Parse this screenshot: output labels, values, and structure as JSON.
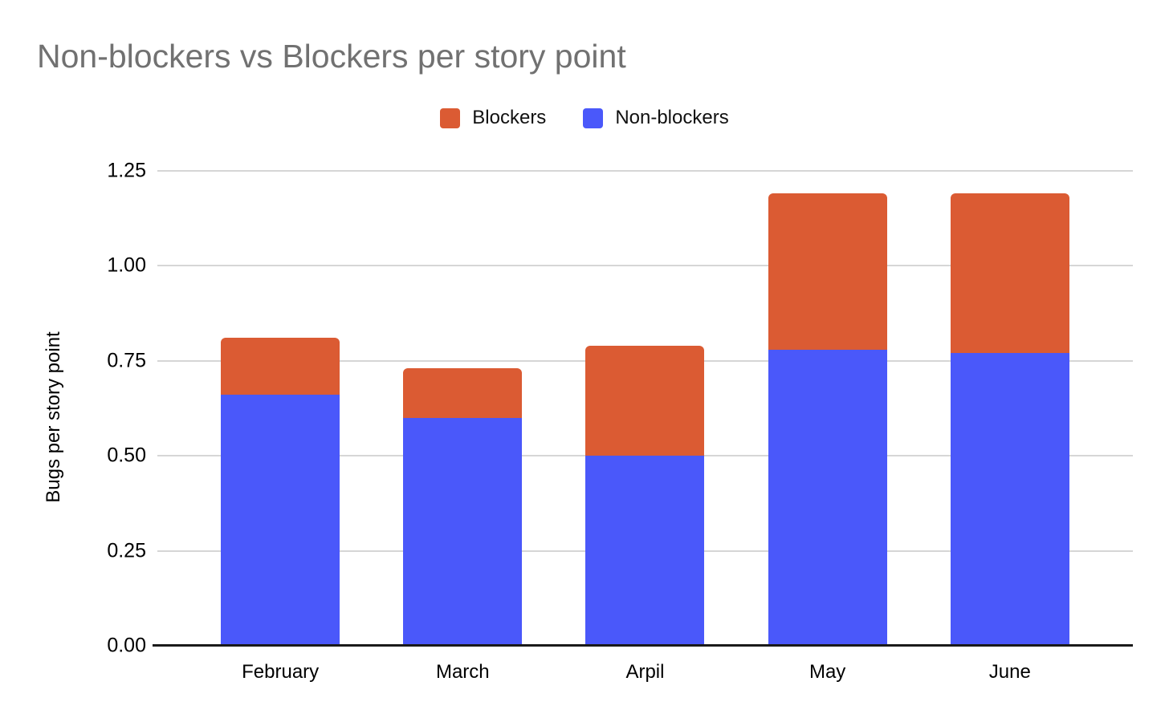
{
  "chart_data": {
    "type": "bar",
    "stacked": true,
    "title": "Non-blockers vs Blockers per story point",
    "title_color": "#717171",
    "categories": [
      "February",
      "March",
      "Arpil",
      "May",
      "June"
    ],
    "series": [
      {
        "name": "Blockers",
        "color": "#DB5B33",
        "values": [
          0.15,
          0.13,
          0.29,
          0.41,
          0.42
        ]
      },
      {
        "name": "Non-blockers",
        "color": "#4A58FA",
        "values": [
          0.66,
          0.6,
          0.5,
          0.78,
          0.77
        ]
      }
    ],
    "stack_totals": [
      0.81,
      0.73,
      0.79,
      1.19,
      1.19
    ],
    "xlabel": "",
    "ylabel": "Bugs per story point",
    "ylim": [
      0,
      1.25
    ],
    "ytick_labels": [
      "0.00",
      "0.25",
      "0.50",
      "0.75",
      "1.00",
      "1.25"
    ],
    "grid": true,
    "gridline_color": "#D6D6D6",
    "axis_line_color": "#1A1A1A",
    "legend_position": "top"
  }
}
